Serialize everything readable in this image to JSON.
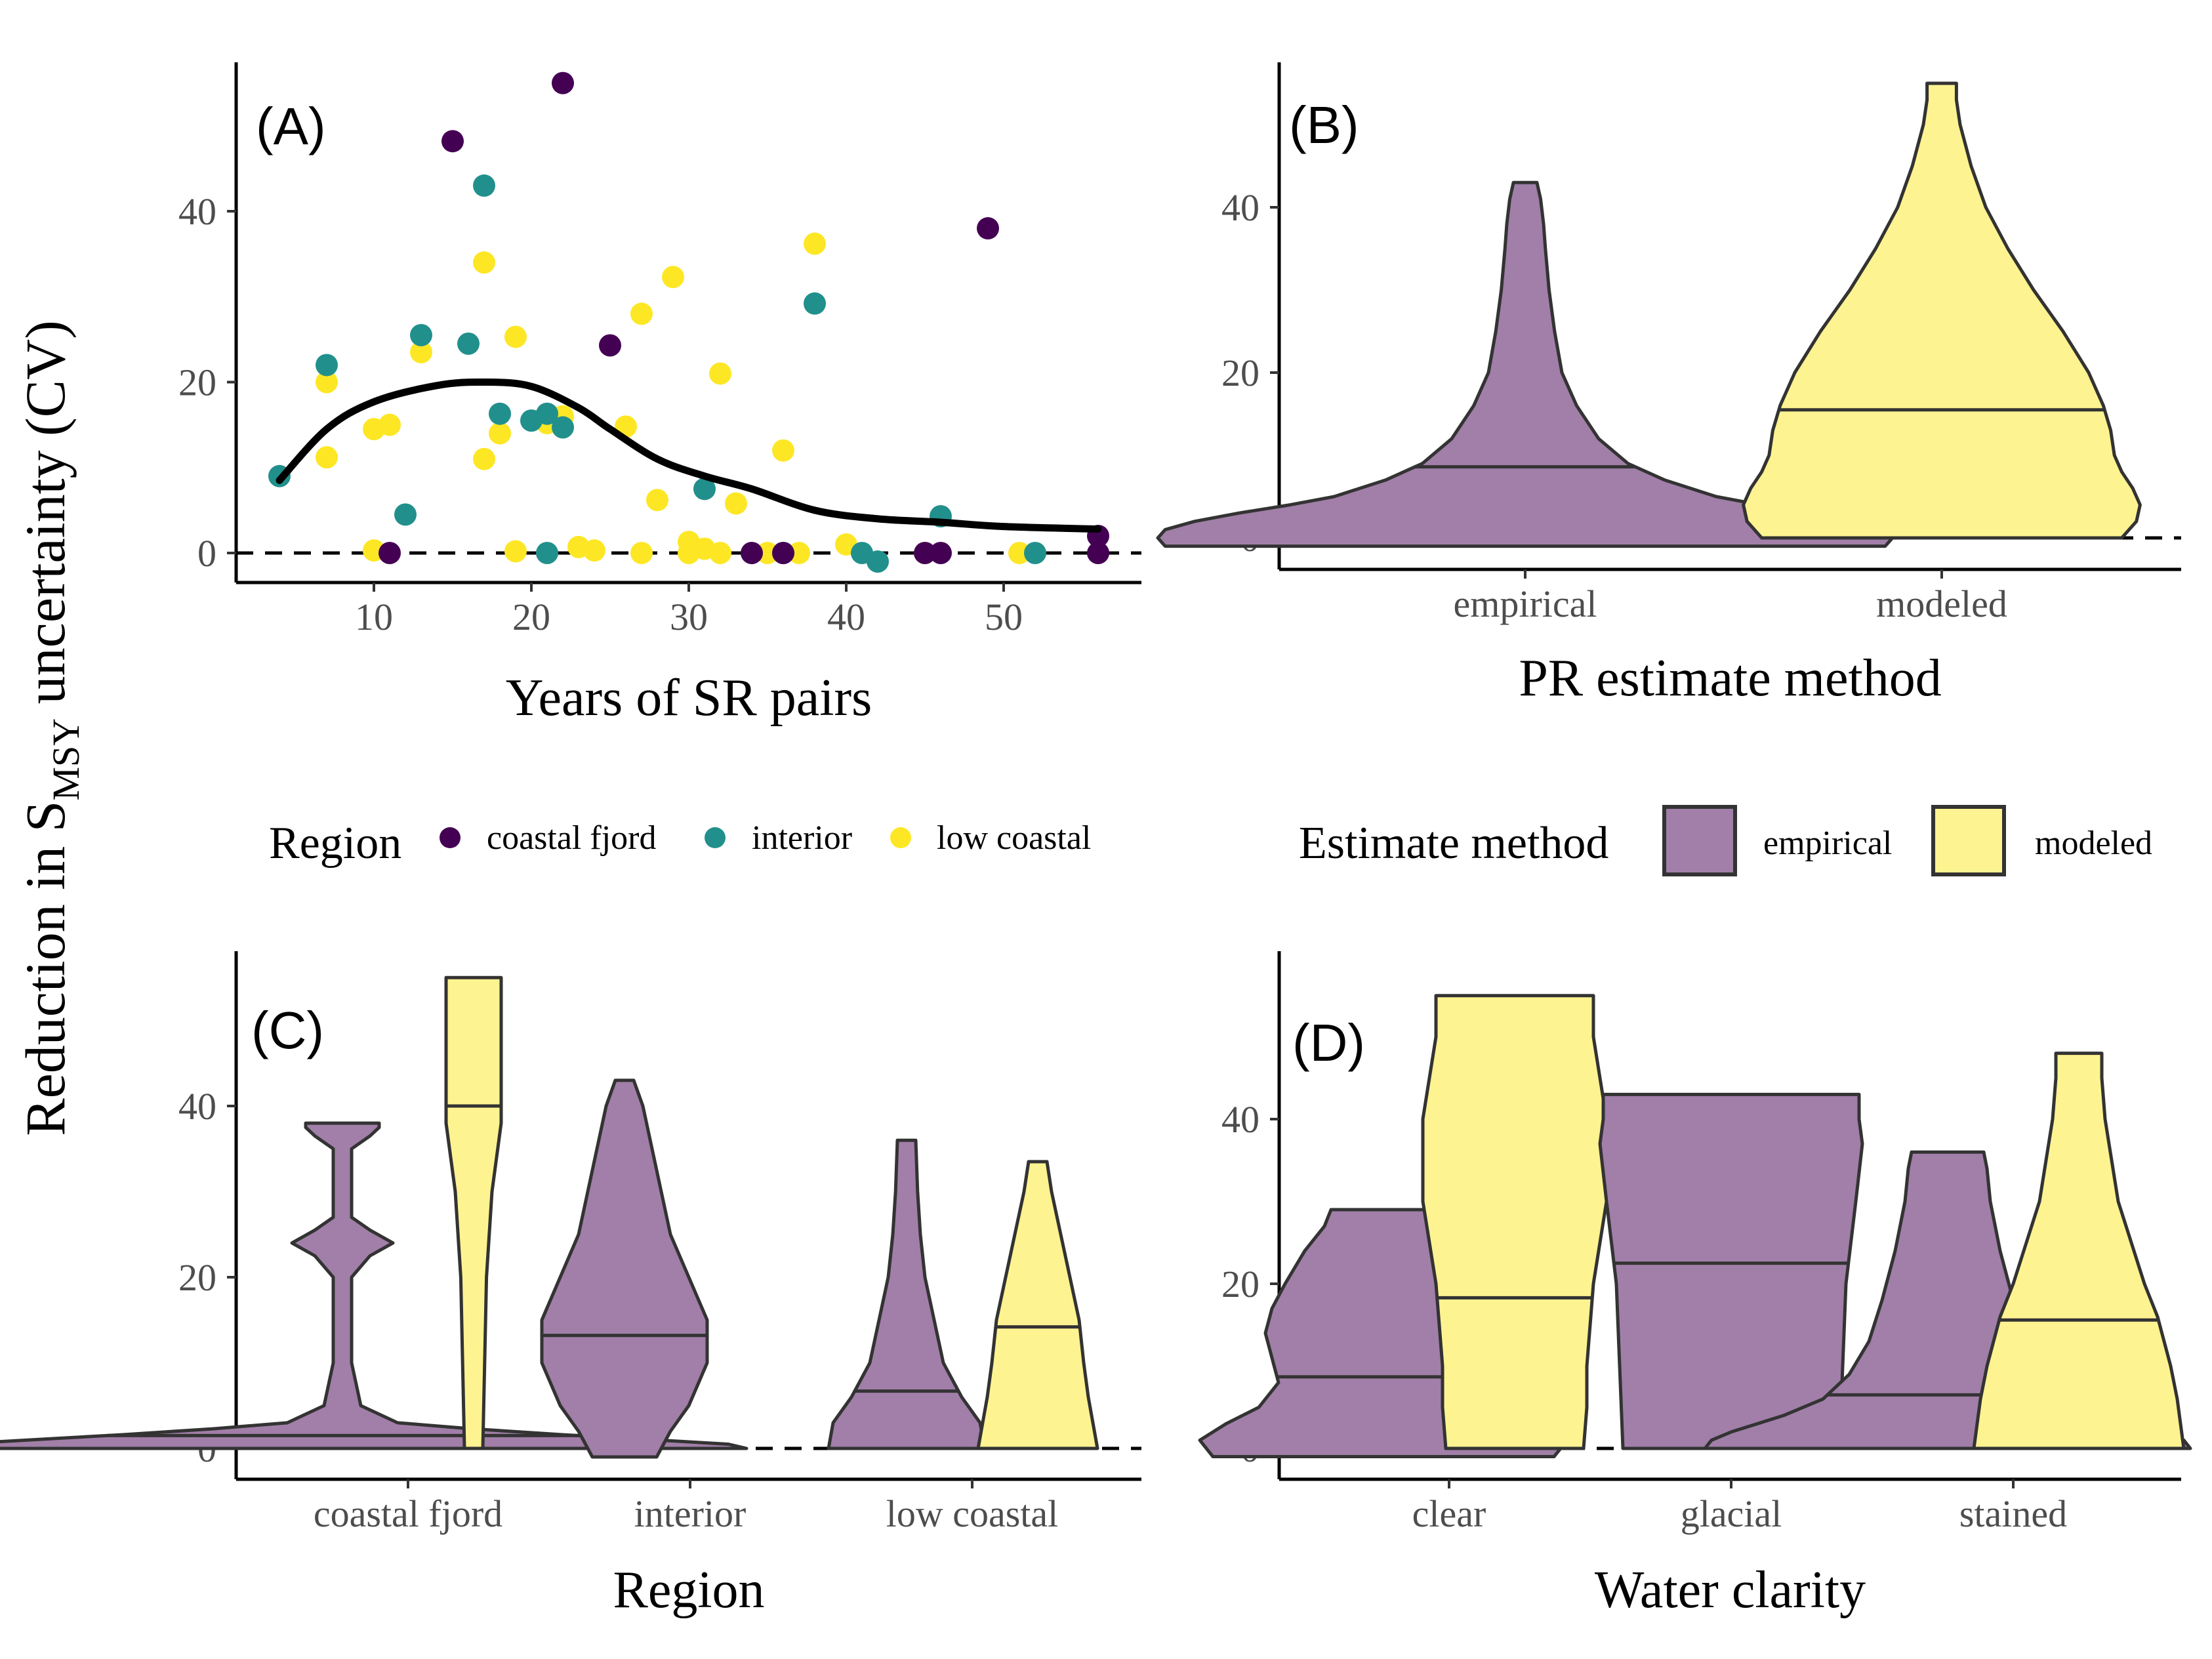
{
  "y_label": {
    "main": "Reduction in S",
    "sub": "MSY",
    "rest": " uncertainty (CV)"
  },
  "colors": {
    "coastal_fjord": "#440154",
    "interior": "#21908C",
    "low_coastal": "#FDE725",
    "empirical_fill": "#A17FA8",
    "modeled_fill": "#FEF391",
    "outline": "#333333"
  },
  "legend_region": {
    "title": "Region",
    "items": [
      "coastal fjord",
      "interior",
      "low coastal"
    ]
  },
  "legend_method": {
    "title": "Estimate method",
    "items": [
      "empirical",
      "modeled"
    ]
  },
  "chart_data": [
    {
      "panel": "(A)",
      "type": "scatter",
      "xlabel": "Years of SR pairs",
      "ylabel": "",
      "xlim": [
        3,
        58
      ],
      "ylim": [
        -3,
        57
      ],
      "xticks": [
        "10",
        "20",
        "30",
        "40",
        "50"
      ],
      "yticks": [
        "0",
        "20",
        "40"
      ],
      "reference_line_y": 0,
      "series": [
        {
          "name": "coastal fjord",
          "points": [
            [
              11,
              0
            ],
            [
              15,
              48.2
            ],
            [
              22,
              55
            ],
            [
              25,
              24.3
            ],
            [
              34,
              0
            ],
            [
              36,
              0
            ],
            [
              45,
              0
            ],
            [
              46,
              0
            ],
            [
              49,
              38
            ],
            [
              56,
              2
            ],
            [
              56,
              0
            ]
          ]
        },
        {
          "name": "interior",
          "points": [
            [
              4,
              9
            ],
            [
              7,
              22
            ],
            [
              12,
              4.5
            ],
            [
              13,
              25.5
            ],
            [
              16,
              24.5
            ],
            [
              17,
              43
            ],
            [
              18,
              16.3
            ],
            [
              20,
              15.5
            ],
            [
              21,
              16.3
            ],
            [
              21,
              0
            ],
            [
              22,
              14.7
            ],
            [
              31,
              7.5
            ],
            [
              36,
              0
            ],
            [
              38,
              29.2
            ],
            [
              41,
              0
            ],
            [
              42,
              -1
            ],
            [
              46,
              4.3
            ],
            [
              52,
              0
            ]
          ]
        },
        {
          "name": "low coastal",
          "points": [
            [
              7,
              20
            ],
            [
              7,
              11.2
            ],
            [
              10,
              14.5
            ],
            [
              10,
              0.3
            ],
            [
              11,
              15
            ],
            [
              13,
              23.5
            ],
            [
              17,
              34
            ],
            [
              17,
              11
            ],
            [
              18,
              14
            ],
            [
              19,
              25.3
            ],
            [
              19,
              0.2
            ],
            [
              21,
              15.2
            ],
            [
              22,
              16
            ],
            [
              23,
              0.7
            ],
            [
              24,
              0.3
            ],
            [
              26,
              14.8
            ],
            [
              27,
              28
            ],
            [
              27,
              0
            ],
            [
              28,
              6.2
            ],
            [
              29,
              32.3
            ],
            [
              30,
              1.3
            ],
            [
              30,
              0
            ],
            [
              31,
              0.5
            ],
            [
              32,
              21
            ],
            [
              32,
              0
            ],
            [
              33,
              5.8
            ],
            [
              35,
              0
            ],
            [
              36,
              12
            ],
            [
              37,
              0
            ],
            [
              38,
              36.2
            ],
            [
              40,
              1
            ],
            [
              45,
              0
            ],
            [
              51,
              0
            ]
          ]
        }
      ],
      "trend": [
        [
          4,
          8.5
        ],
        [
          7,
          14.5
        ],
        [
          10,
          17.7
        ],
        [
          14,
          19.6
        ],
        [
          17,
          20
        ],
        [
          20,
          19.5
        ],
        [
          23,
          17
        ],
        [
          25,
          14.5
        ],
        [
          28,
          11
        ],
        [
          31,
          9
        ],
        [
          34,
          7.5
        ],
        [
          38,
          5
        ],
        [
          42,
          4
        ],
        [
          46,
          3.6
        ],
        [
          50,
          3.1
        ],
        [
          56,
          2.8
        ]
      ]
    },
    {
      "panel": "(B)",
      "type": "violin",
      "xlabel": "PR estimate method",
      "ylabel": "",
      "ylim": [
        -3,
        57
      ],
      "yticks": [
        "0",
        "20",
        "40"
      ],
      "categories": [
        "empirical",
        "modeled"
      ],
      "violins": [
        {
          "category": "empirical",
          "fill": "empirical",
          "min": -1,
          "max": 43,
          "median": 8.6,
          "profile": [
            [
              -1,
              0.98
            ],
            [
              0,
              1.0
            ],
            [
              1,
              0.98
            ],
            [
              2,
              0.9
            ],
            [
              3,
              0.78
            ],
            [
              4,
              0.64
            ],
            [
              5,
              0.52
            ],
            [
              7,
              0.38
            ],
            [
              9,
              0.28
            ],
            [
              12,
              0.2
            ],
            [
              16,
              0.14
            ],
            [
              20,
              0.1
            ],
            [
              25,
              0.08
            ],
            [
              30,
              0.065
            ],
            [
              35,
              0.055
            ],
            [
              38,
              0.05
            ],
            [
              41,
              0.042
            ],
            [
              43,
              0.032
            ]
          ]
        },
        {
          "category": "modeled",
          "fill": "modeled",
          "min": 0,
          "max": 55,
          "median": 15.5,
          "profile": [
            [
              0,
              0.49
            ],
            [
              2,
              0.53
            ],
            [
              4,
              0.54
            ],
            [
              6,
              0.52
            ],
            [
              8,
              0.49
            ],
            [
              10,
              0.47
            ],
            [
              13,
              0.46
            ],
            [
              16,
              0.44
            ],
            [
              20,
              0.4
            ],
            [
              25,
              0.33
            ],
            [
              30,
              0.25
            ],
            [
              35,
              0.18
            ],
            [
              40,
              0.12
            ],
            [
              45,
              0.08
            ],
            [
              50,
              0.05
            ],
            [
              53,
              0.04
            ],
            [
              55,
              0.04
            ]
          ]
        }
      ]
    },
    {
      "panel": "(C)",
      "type": "violin",
      "xlabel": "Region",
      "ylabel": "",
      "ylim": [
        -3,
        57
      ],
      "yticks": [
        "0",
        "20",
        "40"
      ],
      "categories": [
        "coastal fjord",
        "interior",
        "low coastal"
      ],
      "violins": [
        {
          "category": "coastal fjord",
          "fill": "empirical",
          "dodge": -1,
          "min": 0,
          "max": 38,
          "median": 1.5,
          "profile": [
            [
              0,
              0.44
            ],
            [
              0.5,
              0.42
            ],
            [
              1,
              0.34
            ],
            [
              1.6,
              0.24
            ],
            [
              2.3,
              0.14
            ],
            [
              3,
              0.06
            ],
            [
              5,
              0.02
            ],
            [
              10,
              0.01
            ],
            [
              20,
              0.01
            ],
            [
              22.5,
              0.03
            ],
            [
              24,
              0.055
            ],
            [
              25.5,
              0.03
            ],
            [
              27,
              0.01
            ],
            [
              35,
              0.01
            ],
            [
              36.5,
              0.03
            ],
            [
              37.5,
              0.04
            ],
            [
              38,
              0.04
            ]
          ]
        },
        {
          "category": "coastal fjord",
          "fill": "modeled",
          "dodge": 1,
          "min": 0,
          "max": 55,
          "median": 40,
          "profile": [
            [
              0,
              0.01
            ],
            [
              10,
              0.012
            ],
            [
              20,
              0.014
            ],
            [
              30,
              0.02
            ],
            [
              38,
              0.03
            ],
            [
              44,
              0.03
            ],
            [
              50,
              0.03
            ],
            [
              55,
              0.03
            ]
          ]
        },
        {
          "category": "interior",
          "fill": "empirical",
          "dodge": -1,
          "min": -1,
          "max": 43,
          "median": 13.2,
          "profile": [
            [
              -1,
              0.035
            ],
            [
              2,
              0.05
            ],
            [
              5,
              0.07
            ],
            [
              10,
              0.09
            ],
            [
              15,
              0.09
            ],
            [
              20,
              0.07
            ],
            [
              25,
              0.05
            ],
            [
              30,
              0.04
            ],
            [
              35,
              0.03
            ],
            [
              40,
              0.02
            ],
            [
              43,
              0.01
            ]
          ]
        },
        {
          "category": "low coastal",
          "fill": "empirical",
          "dodge": -1,
          "min": 0,
          "max": 36,
          "median": 6.7,
          "profile": [
            [
              0,
              0.085
            ],
            [
              3,
              0.08
            ],
            [
              6,
              0.06
            ],
            [
              10,
              0.04
            ],
            [
              15,
              0.03
            ],
            [
              20,
              0.02
            ],
            [
              25,
              0.015
            ],
            [
              30,
              0.012
            ],
            [
              36,
              0.01
            ]
          ]
        },
        {
          "category": "low coastal",
          "fill": "modeled",
          "dodge": 1,
          "min": 0,
          "max": 33.5,
          "median": 14.2,
          "profile": [
            [
              0,
              0.065
            ],
            [
              3,
              0.06
            ],
            [
              6,
              0.055
            ],
            [
              10,
              0.05
            ],
            [
              15,
              0.045
            ],
            [
              20,
              0.035
            ],
            [
              25,
              0.025
            ],
            [
              30,
              0.015
            ],
            [
              33.5,
              0.01
            ]
          ]
        }
      ]
    },
    {
      "panel": "(D)",
      "type": "violin",
      "xlabel": "Water clarity",
      "ylabel": "",
      "ylim": [
        -3,
        57
      ],
      "yticks": [
        "0",
        "20",
        "40"
      ],
      "categories": [
        "clear",
        "glacial",
        "stained"
      ],
      "violins": [
        {
          "category": "clear",
          "fill": "empirical",
          "dodge": -1,
          "min": -1,
          "max": 29,
          "median": 8.7,
          "profile": [
            [
              -1,
              0.26
            ],
            [
              1,
              0.28
            ],
            [
              3,
              0.24
            ],
            [
              5,
              0.19
            ],
            [
              8,
              0.16
            ],
            [
              11,
              0.17
            ],
            [
              14,
              0.18
            ],
            [
              17,
              0.17
            ],
            [
              20,
              0.15
            ],
            [
              24,
              0.12
            ],
            [
              27,
              0.09
            ],
            [
              29,
              0.08
            ]
          ]
        },
        {
          "category": "clear",
          "fill": "modeled",
          "dodge": 1,
          "min": 0,
          "max": 55,
          "median": 18.3,
          "profile": [
            [
              0,
              0.105
            ],
            [
              5,
              0.11
            ],
            [
              10,
              0.11
            ],
            [
              15,
              0.115
            ],
            [
              20,
              0.12
            ],
            [
              25,
              0.13
            ],
            [
              30,
              0.14
            ],
            [
              35,
              0.14
            ],
            [
              40,
              0.14
            ],
            [
              45,
              0.13
            ],
            [
              50,
              0.12
            ],
            [
              55,
              0.12
            ]
          ]
        },
        {
          "category": "glacial",
          "fill": "empirical",
          "dodge": 0,
          "min": 0,
          "max": 43,
          "median": 22.5,
          "profile": [
            [
              0,
              0.165
            ],
            [
              10,
              0.17
            ],
            [
              20,
              0.175
            ],
            [
              30,
              0.19
            ],
            [
              37,
              0.2
            ],
            [
              40,
              0.195
            ],
            [
              43,
              0.195
            ]
          ]
        },
        {
          "category": "stained",
          "fill": "empirical",
          "dodge": -1,
          "min": 0,
          "max": 36,
          "median": 6.5,
          "profile": [
            [
              0,
              0.37
            ],
            [
              1,
              0.36
            ],
            [
              2,
              0.33
            ],
            [
              4,
              0.25
            ],
            [
              6,
              0.19
            ],
            [
              9,
              0.15
            ],
            [
              13,
              0.12
            ],
            [
              18,
              0.1
            ],
            [
              24,
              0.08
            ],
            [
              30,
              0.065
            ],
            [
              34,
              0.06
            ],
            [
              36,
              0.055
            ]
          ]
        },
        {
          "category": "stained",
          "fill": "modeled",
          "dodge": 1,
          "min": 0,
          "max": 48,
          "median": 15.6,
          "profile": [
            [
              0,
              0.16
            ],
            [
              3,
              0.155
            ],
            [
              6,
              0.15
            ],
            [
              10,
              0.14
            ],
            [
              13,
              0.13
            ],
            [
              16,
              0.12
            ],
            [
              20,
              0.1
            ],
            [
              25,
              0.08
            ],
            [
              30,
              0.06
            ],
            [
              35,
              0.05
            ],
            [
              40,
              0.04
            ],
            [
              45,
              0.035
            ],
            [
              48,
              0.035
            ]
          ]
        }
      ]
    }
  ]
}
